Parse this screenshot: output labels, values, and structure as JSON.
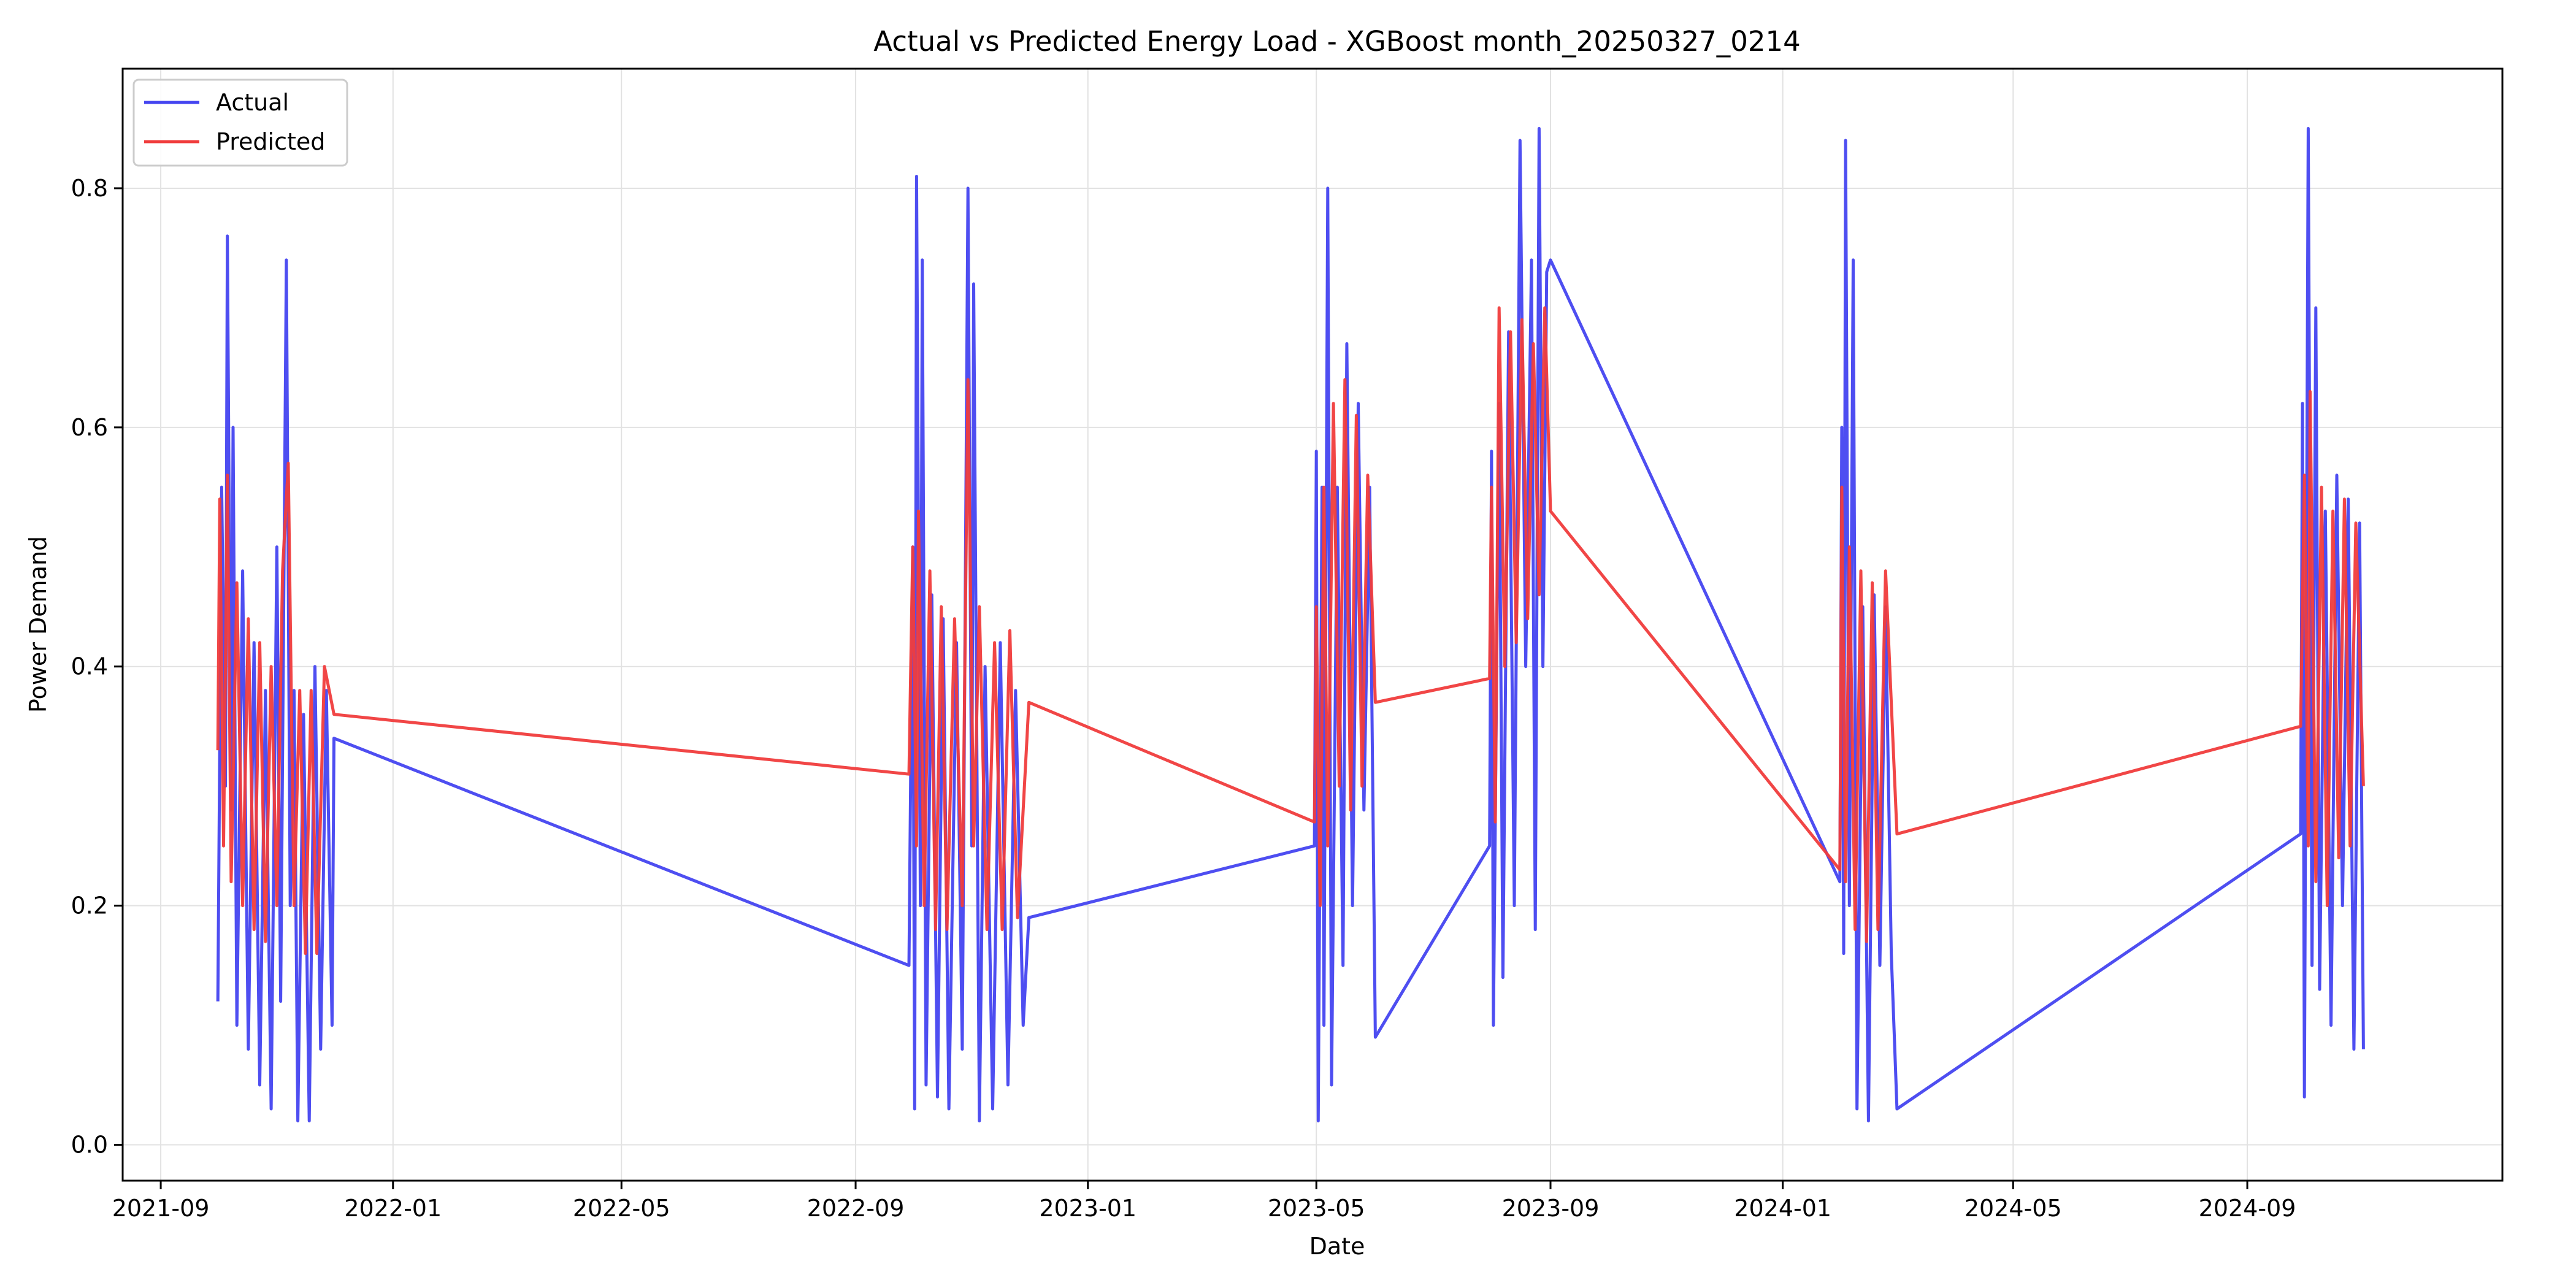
{
  "chart_data": {
    "type": "line",
    "title": "Actual vs Predicted Energy Load - XGBoost month_20250327_0214",
    "xlabel": "Date",
    "ylabel": "Power Demand",
    "x_axis": {
      "type": "date",
      "range": [
        "2021-08-12",
        "2025-01-13"
      ],
      "ticks": [
        "2021-09",
        "2022-01",
        "2022-05",
        "2022-09",
        "2023-01",
        "2023-05",
        "2023-09",
        "2024-01",
        "2024-05",
        "2024-09"
      ]
    },
    "y_axis": {
      "range": [
        -0.03,
        0.9
      ],
      "ticks": [
        "0.0",
        "0.2",
        "0.4",
        "0.6",
        "0.8"
      ]
    },
    "grid": true,
    "legend": {
      "location": "upper-left",
      "entries": [
        "Actual",
        "Predicted"
      ]
    },
    "series": [
      {
        "name": "Actual",
        "color": "#4444f0",
        "segments": [
          {
            "start": "2021-10-01",
            "end": "2021-12-01",
            "points": [
              [
                "2021-10-01",
                0.12
              ],
              [
                "2021-10-03",
                0.55
              ],
              [
                "2021-10-05",
                0.3
              ],
              [
                "2021-10-06",
                0.76
              ],
              [
                "2021-10-08",
                0.28
              ],
              [
                "2021-10-09",
                0.6
              ],
              [
                "2021-10-11",
                0.1
              ],
              [
                "2021-10-14",
                0.48
              ],
              [
                "2021-10-17",
                0.08
              ],
              [
                "2021-10-20",
                0.42
              ],
              [
                "2021-10-23",
                0.05
              ],
              [
                "2021-10-26",
                0.38
              ],
              [
                "2021-10-29",
                0.03
              ],
              [
                "2021-11-01",
                0.5
              ],
              [
                "2021-11-03",
                0.12
              ],
              [
                "2021-11-06",
                0.74
              ],
              [
                "2021-11-08",
                0.2
              ],
              [
                "2021-11-10",
                0.38
              ],
              [
                "2021-11-12",
                0.02
              ],
              [
                "2021-11-15",
                0.36
              ],
              [
                "2021-11-18",
                0.02
              ],
              [
                "2021-11-21",
                0.4
              ],
              [
                "2021-11-24",
                0.08
              ],
              [
                "2021-11-27",
                0.38
              ],
              [
                "2021-11-30",
                0.1
              ],
              [
                "2021-12-01",
                0.34
              ]
            ]
          },
          {
            "start": "2022-10-01",
            "end": "2022-12-01",
            "points": [
              [
                "2022-09-29",
                0.15
              ],
              [
                "2022-10-01",
                0.5
              ],
              [
                "2022-10-02",
                0.03
              ],
              [
                "2022-10-03",
                0.81
              ],
              [
                "2022-10-05",
                0.2
              ],
              [
                "2022-10-06",
                0.74
              ],
              [
                "2022-10-08",
                0.05
              ],
              [
                "2022-10-11",
                0.46
              ],
              [
                "2022-10-14",
                0.04
              ],
              [
                "2022-10-17",
                0.44
              ],
              [
                "2022-10-20",
                0.03
              ],
              [
                "2022-10-24",
                0.42
              ],
              [
                "2022-10-27",
                0.08
              ],
              [
                "2022-10-30",
                0.8
              ],
              [
                "2022-11-01",
                0.25
              ],
              [
                "2022-11-02",
                0.72
              ],
              [
                "2022-11-05",
                0.02
              ],
              [
                "2022-11-08",
                0.4
              ],
              [
                "2022-11-12",
                0.03
              ],
              [
                "2022-11-16",
                0.42
              ],
              [
                "2022-11-20",
                0.05
              ],
              [
                "2022-11-24",
                0.38
              ],
              [
                "2022-11-28",
                0.1
              ],
              [
                "2022-12-01",
                0.19
              ]
            ]
          },
          {
            "start": "2023-05-01",
            "end": "2023-06-01",
            "points": [
              [
                "2023-04-30",
                0.25
              ],
              [
                "2023-05-01",
                0.58
              ],
              [
                "2023-05-02",
                0.02
              ],
              [
                "2023-05-04",
                0.55
              ],
              [
                "2023-05-05",
                0.1
              ],
              [
                "2023-05-07",
                0.8
              ],
              [
                "2023-05-09",
                0.05
              ],
              [
                "2023-05-12",
                0.55
              ],
              [
                "2023-05-15",
                0.15
              ],
              [
                "2023-05-17",
                0.67
              ],
              [
                "2023-05-20",
                0.2
              ],
              [
                "2023-05-23",
                0.62
              ],
              [
                "2023-05-26",
                0.28
              ],
              [
                "2023-05-29",
                0.55
              ],
              [
                "2023-06-01",
                0.09
              ]
            ]
          },
          {
            "start": "2023-08-01",
            "end": "2023-09-01",
            "points": [
              [
                "2023-07-31",
                0.25
              ],
              [
                "2023-08-01",
                0.58
              ],
              [
                "2023-08-02",
                0.1
              ],
              [
                "2023-08-05",
                0.62
              ],
              [
                "2023-08-07",
                0.14
              ],
              [
                "2023-08-10",
                0.68
              ],
              [
                "2023-08-13",
                0.2
              ],
              [
                "2023-08-16",
                0.84
              ],
              [
                "2023-08-19",
                0.4
              ],
              [
                "2023-08-22",
                0.74
              ],
              [
                "2023-08-24",
                0.18
              ],
              [
                "2023-08-26",
                0.85
              ],
              [
                "2023-08-28",
                0.4
              ],
              [
                "2023-08-30",
                0.73
              ],
              [
                "2023-09-01",
                0.74
              ]
            ]
          },
          {
            "start": "2024-02-01",
            "end": "2024-03-01",
            "points": [
              [
                "2024-01-31",
                0.22
              ],
              [
                "2024-02-01",
                0.6
              ],
              [
                "2024-02-02",
                0.16
              ],
              [
                "2024-02-03",
                0.84
              ],
              [
                "2024-02-05",
                0.2
              ],
              [
                "2024-02-07",
                0.74
              ],
              [
                "2024-02-09",
                0.03
              ],
              [
                "2024-02-12",
                0.45
              ],
              [
                "2024-02-15",
                0.02
              ],
              [
                "2024-02-18",
                0.46
              ],
              [
                "2024-02-21",
                0.15
              ],
              [
                "2024-02-24",
                0.45
              ],
              [
                "2024-02-27",
                0.16
              ],
              [
                "2024-03-01",
                0.03
              ]
            ]
          },
          {
            "start": "2024-10-01",
            "end": "2024-11-01",
            "points": [
              [
                "2024-09-29",
                0.26
              ],
              [
                "2024-09-30",
                0.62
              ],
              [
                "2024-10-01",
                0.04
              ],
              [
                "2024-10-03",
                0.85
              ],
              [
                "2024-10-05",
                0.15
              ],
              [
                "2024-10-07",
                0.7
              ],
              [
                "2024-10-09",
                0.13
              ],
              [
                "2024-10-12",
                0.53
              ],
              [
                "2024-10-15",
                0.1
              ],
              [
                "2024-10-18",
                0.56
              ],
              [
                "2024-10-21",
                0.2
              ],
              [
                "2024-10-24",
                0.54
              ],
              [
                "2024-10-27",
                0.08
              ],
              [
                "2024-10-30",
                0.52
              ],
              [
                "2024-11-01",
                0.08
              ]
            ]
          }
        ]
      },
      {
        "name": "Predicted",
        "color": "#f03c3c",
        "segments": [
          {
            "start": "2021-10-01",
            "end": "2021-12-01",
            "points": [
              [
                "2021-10-01",
                0.33
              ],
              [
                "2021-10-02",
                0.54
              ],
              [
                "2021-10-04",
                0.25
              ],
              [
                "2021-10-06",
                0.56
              ],
              [
                "2021-10-08",
                0.22
              ],
              [
                "2021-10-11",
                0.47
              ],
              [
                "2021-10-14",
                0.2
              ],
              [
                "2021-10-17",
                0.44
              ],
              [
                "2021-10-20",
                0.18
              ],
              [
                "2021-10-23",
                0.42
              ],
              [
                "2021-10-26",
                0.17
              ],
              [
                "2021-10-29",
                0.4
              ],
              [
                "2021-11-01",
                0.2
              ],
              [
                "2021-11-04",
                0.48
              ],
              [
                "2021-11-07",
                0.57
              ],
              [
                "2021-11-10",
                0.2
              ],
              [
                "2021-11-13",
                0.38
              ],
              [
                "2021-11-16",
                0.16
              ],
              [
                "2021-11-19",
                0.38
              ],
              [
                "2021-11-22",
                0.16
              ],
              [
                "2021-11-26",
                0.4
              ],
              [
                "2021-12-01",
                0.36
              ]
            ]
          },
          {
            "start": "2022-10-01",
            "end": "2022-12-01",
            "points": [
              [
                "2022-09-29",
                0.31
              ],
              [
                "2022-10-01",
                0.5
              ],
              [
                "2022-10-03",
                0.25
              ],
              [
                "2022-10-04",
                0.53
              ],
              [
                "2022-10-07",
                0.2
              ],
              [
                "2022-10-10",
                0.48
              ],
              [
                "2022-10-13",
                0.18
              ],
              [
                "2022-10-16",
                0.45
              ],
              [
                "2022-10-19",
                0.18
              ],
              [
                "2022-10-23",
                0.44
              ],
              [
                "2022-10-27",
                0.2
              ],
              [
                "2022-10-30",
                0.64
              ],
              [
                "2022-11-02",
                0.25
              ],
              [
                "2022-11-05",
                0.45
              ],
              [
                "2022-11-09",
                0.18
              ],
              [
                "2022-11-13",
                0.42
              ],
              [
                "2022-11-17",
                0.18
              ],
              [
                "2022-11-21",
                0.43
              ],
              [
                "2022-11-25",
                0.19
              ],
              [
                "2022-12-01",
                0.37
              ]
            ]
          },
          {
            "start": "2023-05-01",
            "end": "2023-06-01",
            "points": [
              [
                "2023-04-30",
                0.27
              ],
              [
                "2023-05-01",
                0.45
              ],
              [
                "2023-05-03",
                0.2
              ],
              [
                "2023-05-05",
                0.55
              ],
              [
                "2023-05-07",
                0.25
              ],
              [
                "2023-05-10",
                0.62
              ],
              [
                "2023-05-13",
                0.3
              ],
              [
                "2023-05-16",
                0.64
              ],
              [
                "2023-05-19",
                0.28
              ],
              [
                "2023-05-22",
                0.61
              ],
              [
                "2023-05-25",
                0.3
              ],
              [
                "2023-05-28",
                0.56
              ],
              [
                "2023-06-01",
                0.37
              ]
            ]
          },
          {
            "start": "2023-08-01",
            "end": "2023-09-01",
            "points": [
              [
                "2023-07-31",
                0.39
              ],
              [
                "2023-08-01",
                0.55
              ],
              [
                "2023-08-03",
                0.27
              ],
              [
                "2023-08-05",
                0.7
              ],
              [
                "2023-08-08",
                0.4
              ],
              [
                "2023-08-11",
                0.68
              ],
              [
                "2023-08-14",
                0.42
              ],
              [
                "2023-08-17",
                0.69
              ],
              [
                "2023-08-20",
                0.44
              ],
              [
                "2023-08-23",
                0.67
              ],
              [
                "2023-08-26",
                0.46
              ],
              [
                "2023-08-29",
                0.7
              ],
              [
                "2023-09-01",
                0.53
              ]
            ]
          },
          {
            "start": "2024-02-01",
            "end": "2024-03-01",
            "points": [
              [
                "2024-01-31",
                0.23
              ],
              [
                "2024-02-01",
                0.55
              ],
              [
                "2024-02-03",
                0.22
              ],
              [
                "2024-02-05",
                0.5
              ],
              [
                "2024-02-08",
                0.18
              ],
              [
                "2024-02-11",
                0.48
              ],
              [
                "2024-02-14",
                0.17
              ],
              [
                "2024-02-17",
                0.47
              ],
              [
                "2024-02-20",
                0.18
              ],
              [
                "2024-02-24",
                0.48
              ],
              [
                "2024-03-01",
                0.26
              ]
            ]
          },
          {
            "start": "2024-10-01",
            "end": "2024-11-01",
            "points": [
              [
                "2024-09-29",
                0.35
              ],
              [
                "2024-10-01",
                0.56
              ],
              [
                "2024-10-03",
                0.25
              ],
              [
                "2024-10-04",
                0.63
              ],
              [
                "2024-10-07",
                0.22
              ],
              [
                "2024-10-10",
                0.55
              ],
              [
                "2024-10-13",
                0.2
              ],
              [
                "2024-10-16",
                0.53
              ],
              [
                "2024-10-19",
                0.24
              ],
              [
                "2024-10-22",
                0.54
              ],
              [
                "2024-10-25",
                0.25
              ],
              [
                "2024-10-28",
                0.52
              ],
              [
                "2024-11-01",
                0.3
              ]
            ]
          }
        ]
      }
    ]
  }
}
